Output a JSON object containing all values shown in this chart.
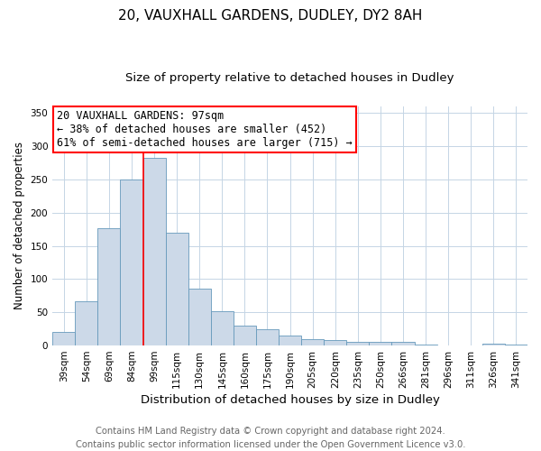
{
  "title": "20, VAUXHALL GARDENS, DUDLEY, DY2 8AH",
  "subtitle": "Size of property relative to detached houses in Dudley",
  "xlabel": "Distribution of detached houses by size in Dudley",
  "ylabel": "Number of detached properties",
  "footer_line1": "Contains HM Land Registry data © Crown copyright and database right 2024.",
  "footer_line2": "Contains public sector information licensed under the Open Government Licence v3.0.",
  "categories": [
    "39sqm",
    "54sqm",
    "69sqm",
    "84sqm",
    "99sqm",
    "115sqm",
    "130sqm",
    "145sqm",
    "160sqm",
    "175sqm",
    "190sqm",
    "205sqm",
    "220sqm",
    "235sqm",
    "250sqm",
    "266sqm",
    "281sqm",
    "296sqm",
    "311sqm",
    "326sqm",
    "341sqm"
  ],
  "values": [
    20,
    66,
    176,
    250,
    283,
    170,
    85,
    52,
    30,
    24,
    15,
    10,
    8,
    6,
    5,
    5,
    2,
    0,
    0,
    3,
    2
  ],
  "bar_color": "#ccd9e8",
  "bar_edge_color": "#6699bb",
  "redline_index": 4,
  "annotation_line1": "20 VAUXHALL GARDENS: 97sqm",
  "annotation_line2": "← 38% of detached houses are smaller (452)",
  "annotation_line3": "61% of semi-detached houses are larger (715) →",
  "annotation_box_color": "white",
  "annotation_box_edge": "red",
  "ylim": [
    0,
    360
  ],
  "yticks": [
    0,
    50,
    100,
    150,
    200,
    250,
    300,
    350
  ],
  "background_color": "white",
  "grid_color": "#c5d5e5",
  "title_fontsize": 11,
  "subtitle_fontsize": 9.5,
  "xlabel_fontsize": 9.5,
  "ylabel_fontsize": 8.5,
  "tick_fontsize": 7.5,
  "annotation_fontsize": 8.5,
  "footer_fontsize": 7.2
}
